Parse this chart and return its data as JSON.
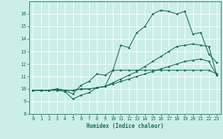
{
  "xlabel": "Humidex (Indice chaleur)",
  "ylabel": "",
  "bg_color": "#cceee8",
  "line_color": "#1a6b5a",
  "xlim": [
    -0.5,
    23.5
  ],
  "ylim": [
    8,
    17
  ],
  "yticks": [
    8,
    9,
    10,
    11,
    12,
    13,
    14,
    15,
    16
  ],
  "xticks": [
    0,
    1,
    2,
    3,
    4,
    5,
    6,
    7,
    8,
    9,
    10,
    11,
    12,
    13,
    14,
    15,
    16,
    17,
    18,
    19,
    20,
    21,
    22,
    23
  ],
  "main_y": [
    9.9,
    9.9,
    9.9,
    9.9,
    9.8,
    9.2,
    9.5,
    9.7,
    10.1,
    10.2,
    11.5,
    13.5,
    13.3,
    14.5,
    15.0,
    16.0,
    16.3,
    16.2,
    16.0,
    16.2,
    14.4,
    14.5,
    12.8,
    12.1
  ],
  "line2_y": [
    9.9,
    9.9,
    9.9,
    9.9,
    9.9,
    9.6,
    10.3,
    10.6,
    11.2,
    11.1,
    11.5,
    11.5,
    11.5,
    11.5,
    11.5,
    11.5,
    11.5,
    11.5,
    11.5,
    11.5,
    11.5,
    11.5,
    11.5,
    11.2
  ],
  "line3_y": [
    9.9,
    9.9,
    9.9,
    10.0,
    9.9,
    9.9,
    10.0,
    10.0,
    10.1,
    10.2,
    10.4,
    10.6,
    10.8,
    11.0,
    11.2,
    11.4,
    11.6,
    11.8,
    12.0,
    12.2,
    12.3,
    12.4,
    12.2,
    11.1
  ],
  "line4_y": [
    9.9,
    9.9,
    9.9,
    10.0,
    9.9,
    9.9,
    10.0,
    10.0,
    10.1,
    10.2,
    10.5,
    10.8,
    11.1,
    11.4,
    11.8,
    12.2,
    12.6,
    13.0,
    13.4,
    13.5,
    13.6,
    13.5,
    13.4,
    11.1
  ]
}
